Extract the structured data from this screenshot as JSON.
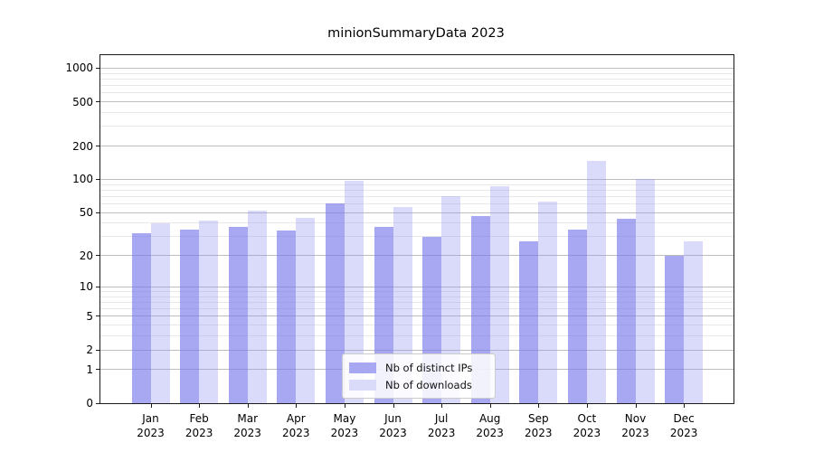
{
  "title": "minionSummaryData 2023",
  "chart_data": {
    "type": "bar",
    "title": "minionSummaryData 2023",
    "xlabel": "",
    "ylabel": "",
    "yscale": "log1p",
    "ylim": [
      0,
      1300
    ],
    "grid": "both",
    "legend_position": "lower center",
    "y_ticks": [
      0,
      1,
      2,
      5,
      10,
      20,
      50,
      100,
      200,
      500,
      1000
    ],
    "y_minor_ticks": [
      3,
      4,
      6,
      7,
      8,
      9,
      30,
      40,
      60,
      70,
      80,
      90,
      300,
      400,
      600,
      700,
      800,
      900
    ],
    "categories": [
      [
        "Jan",
        "2023"
      ],
      [
        "Feb",
        "2023"
      ],
      [
        "Mar",
        "2023"
      ],
      [
        "Apr",
        "2023"
      ],
      [
        "May",
        "2023"
      ],
      [
        "Jun",
        "2023"
      ],
      [
        "Jul",
        "2023"
      ],
      [
        "Aug",
        "2023"
      ],
      [
        "Sep",
        "2023"
      ],
      [
        "Oct",
        "2023"
      ],
      [
        "Nov",
        "2023"
      ],
      [
        "Dec",
        "2023"
      ]
    ],
    "series": [
      {
        "name": "Nb of distinct IPs",
        "color": "rgba(120,120,235,0.65)",
        "legend_color": "#a7a7f2",
        "values": [
          32,
          35,
          37,
          34,
          61,
          37,
          30,
          46,
          27,
          35,
          44,
          20
        ]
      },
      {
        "name": "Nb of downloads",
        "color": "rgba(150,150,240,0.35)",
        "legend_color": "#dadaf9",
        "values": [
          40,
          42,
          52,
          45,
          97,
          56,
          70,
          86,
          63,
          147,
          100,
          27
        ]
      }
    ]
  }
}
